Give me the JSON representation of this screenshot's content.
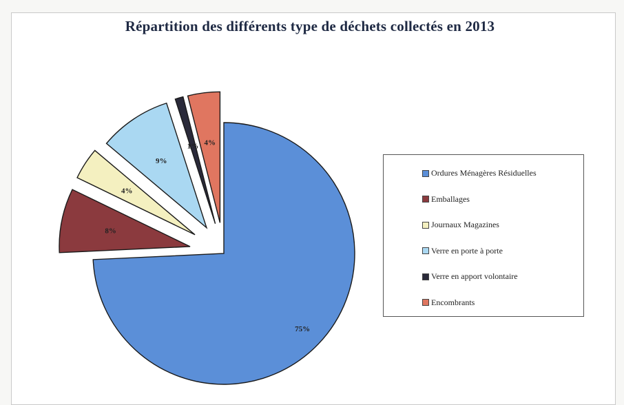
{
  "chart_data": {
    "type": "pie",
    "title": "Répartition des différents type de déchets collectés en 2013",
    "labels": [
      "Ordures Ménagères Résiduelles",
      "Emballages",
      "Journaux Magazines",
      "Verre en porte à porte",
      "Verre en apport volontaire",
      "Encombrants"
    ],
    "values": [
      75,
      8,
      4,
      9,
      1,
      4
    ],
    "slice_labels": [
      "75%",
      "8%",
      "4%",
      "9%",
      "1%",
      "4%"
    ],
    "colors": [
      "#5b8fd8",
      "#8b3a3e",
      "#f4f0c0",
      "#aad8f2",
      "#2a2a3a",
      "#e07660"
    ],
    "legend_position": "right"
  }
}
